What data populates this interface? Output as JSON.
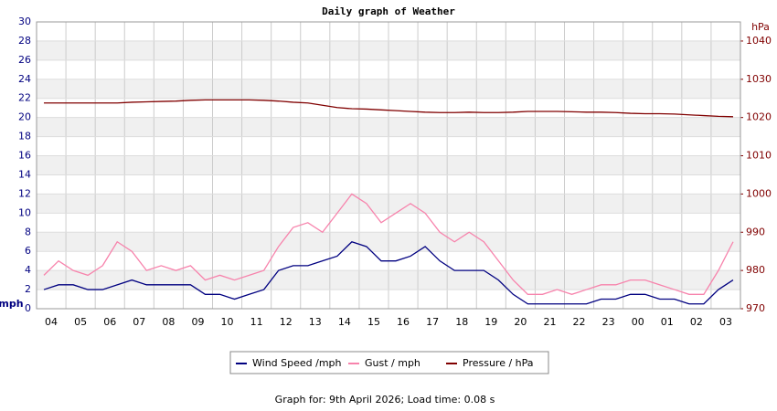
{
  "chart_data": {
    "type": "line",
    "title": "Daily graph of Weather",
    "y_label": "mph",
    "y2_label": "hPa",
    "footer": "Graph for: 9th April 2026; Load time: 0.08 s",
    "categories": [
      "04",
      null,
      "05",
      null,
      "06",
      null,
      "07",
      null,
      "08",
      null,
      "09",
      null,
      "10",
      null,
      "11",
      null,
      "12",
      null,
      "13",
      null,
      "14",
      null,
      "15",
      null,
      "16",
      null,
      "17",
      null,
      "18",
      null,
      "19",
      null,
      "20",
      null,
      "21",
      null,
      "22",
      null,
      "23",
      null,
      "00",
      null,
      "01",
      null,
      "02",
      null,
      "03",
      null
    ],
    "series": [
      {
        "name": "Wind Speed /mph",
        "color": "#000080",
        "values": [
          2,
          2.5,
          2.5,
          2,
          2,
          2.5,
          3,
          2.5,
          2.5,
          2.5,
          2.5,
          1.5,
          1.5,
          1,
          1.5,
          2,
          4,
          4.5,
          4.5,
          5,
          5.5,
          7,
          6.5,
          5,
          5,
          5.5,
          6.5,
          5,
          4,
          4,
          4,
          3,
          1.5,
          0.5,
          0.5,
          0.5,
          0.5,
          0.5,
          1,
          1,
          1.5,
          1.5,
          1,
          1,
          0.5,
          0.5,
          2,
          3
        ]
      },
      {
        "name": "Gust / mph",
        "color": "#f783ac",
        "values": [
          3.5,
          5,
          4,
          3.5,
          4.5,
          7,
          6,
          4,
          4.5,
          4,
          4.5,
          3,
          3.5,
          3,
          3.5,
          4,
          6.5,
          8.5,
          9,
          8,
          10,
          12,
          11,
          9,
          10,
          11,
          10,
          8,
          7,
          8,
          7,
          5,
          3,
          1.5,
          1.5,
          2,
          1.5,
          2,
          2.5,
          2.5,
          3,
          3,
          2.5,
          2,
          1.5,
          1.5,
          4,
          7
        ]
      },
      {
        "name": "Pressure / hPa",
        "color": "#800000",
        "axis": "y2",
        "values": [
          1023.8,
          1023.8,
          1023.8,
          1023.8,
          1023.8,
          1023.8,
          1024,
          1024.1,
          1024.2,
          1024.3,
          1024.5,
          1024.6,
          1024.6,
          1024.6,
          1024.6,
          1024.5,
          1024.3,
          1024,
          1023.8,
          1023.2,
          1022.6,
          1022.3,
          1022.2,
          1022,
          1021.8,
          1021.6,
          1021.4,
          1021.3,
          1021.3,
          1021.4,
          1021.3,
          1021.3,
          1021.4,
          1021.6,
          1021.6,
          1021.6,
          1021.5,
          1021.4,
          1021.4,
          1021.3,
          1021.1,
          1021,
          1021,
          1020.9,
          1020.7,
          1020.5,
          1020.3,
          1020.2
        ]
      }
    ],
    "ylim": [
      0,
      30
    ],
    "yticks": [
      0,
      2,
      4,
      6,
      8,
      10,
      12,
      14,
      16,
      18,
      20,
      22,
      24,
      26,
      28,
      30
    ],
    "y2lim": [
      970,
      1045
    ],
    "y2ticks": [
      970,
      980,
      990,
      1000,
      1010,
      1020,
      1030,
      1040
    ],
    "grid": true
  }
}
